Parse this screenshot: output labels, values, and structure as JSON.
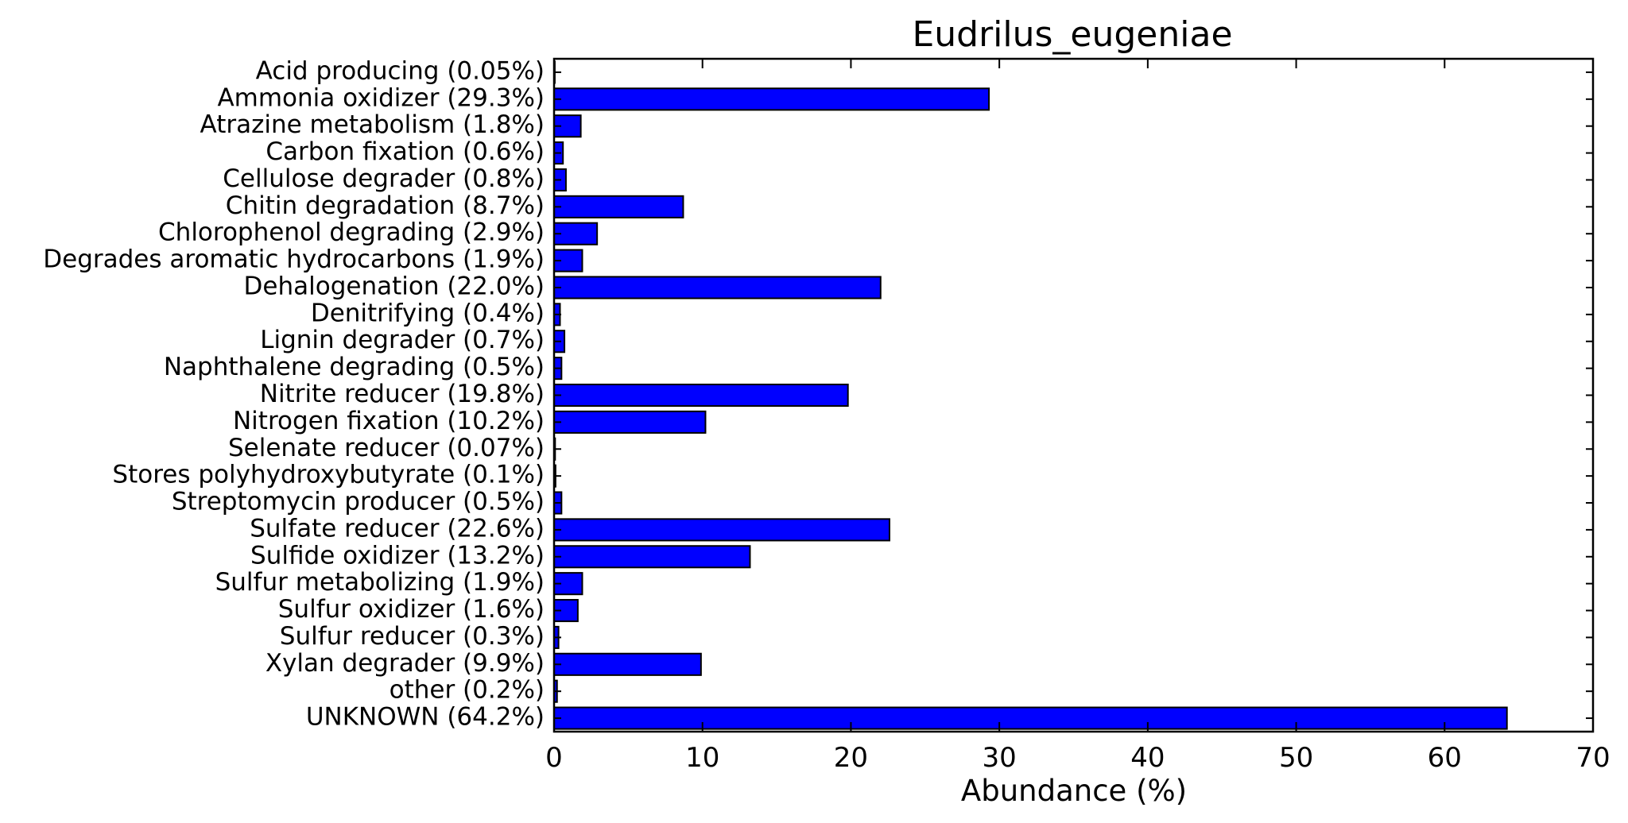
{
  "chart_data": {
    "type": "bar",
    "orientation": "horizontal",
    "title": "Eudrilus_eugeniae",
    "xlabel": "Abundance (%)",
    "ylabel": "",
    "xlim": [
      0,
      70
    ],
    "xticks": [
      0,
      10,
      20,
      30,
      40,
      50,
      60,
      70
    ],
    "bar_color": "#0000ff",
    "edge_color": "#000000",
    "grid": false,
    "categories": [
      "Acid producing (0.05%)",
      "Ammonia oxidizer (29.3%)",
      "Atrazine metabolism (1.8%)",
      "Carbon fixation (0.6%)",
      "Cellulose degrader (0.8%)",
      "Chitin degradation (8.7%)",
      "Chlorophenol degrading (2.9%)",
      "Degrades aromatic hydrocarbons (1.9%)",
      "Dehalogenation (22.0%)",
      "Denitrifying (0.4%)",
      "Lignin degrader (0.7%)",
      "Naphthalene degrading (0.5%)",
      "Nitrite reducer (19.8%)",
      "Nitrogen fixation (10.2%)",
      "Selenate reducer (0.07%)",
      "Stores polyhydroxybutyrate (0.1%)",
      "Streptomycin producer (0.5%)",
      "Sulfate reducer (22.6%)",
      "Sulfide oxidizer (13.2%)",
      "Sulfur metabolizing (1.9%)",
      "Sulfur oxidizer (1.6%)",
      "Sulfur reducer (0.3%)",
      "Xylan degrader (9.9%)",
      "other (0.2%)",
      "UNKNOWN (64.2%)"
    ],
    "values": [
      0.05,
      29.3,
      1.8,
      0.6,
      0.8,
      8.7,
      2.9,
      1.9,
      22.0,
      0.4,
      0.7,
      0.5,
      19.8,
      10.2,
      0.07,
      0.1,
      0.5,
      22.6,
      13.2,
      1.9,
      1.6,
      0.3,
      9.9,
      0.2,
      64.2
    ]
  }
}
